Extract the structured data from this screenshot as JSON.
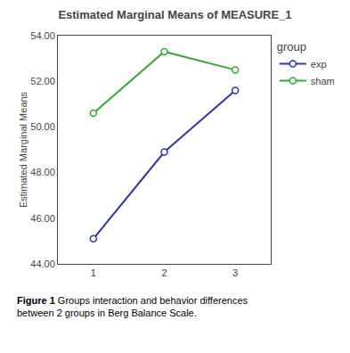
{
  "chart_data": {
    "type": "line",
    "title": "Estimated Marginal Means of MEASURE_1",
    "y_label": "Estimated Marginal Means",
    "x": [
      1,
      2,
      3
    ],
    "series": [
      {
        "name": "exp",
        "color": "#3333aa",
        "values": [
          45.1,
          48.9,
          51.6
        ]
      },
      {
        "name": "sham",
        "color": "#33aa33",
        "values": [
          50.6,
          53.3,
          52.5
        ]
      }
    ],
    "xlim": [
      0.5,
      3.5
    ],
    "xticks": [
      1,
      2,
      3
    ],
    "ylim": [
      44.0,
      54.0
    ],
    "yticks": [
      {
        "value": 44.0,
        "label": "44.00"
      },
      {
        "value": 46.0,
        "label": "46.00"
      },
      {
        "value": 48.0,
        "label": "48.00"
      },
      {
        "value": 50.0,
        "label": "50.00"
      },
      {
        "value": 52.0,
        "label": "52.00"
      },
      {
        "value": 54.0,
        "label": "54.00"
      }
    ],
    "grid": false,
    "legend": "right",
    "legend_title": "group",
    "marker": "circle",
    "annotations": [
      "Figure 1",
      "Groups interaction and behavior differences",
      "between 2 groups in",
      "Berg Balance Scale."
    ]
  }
}
